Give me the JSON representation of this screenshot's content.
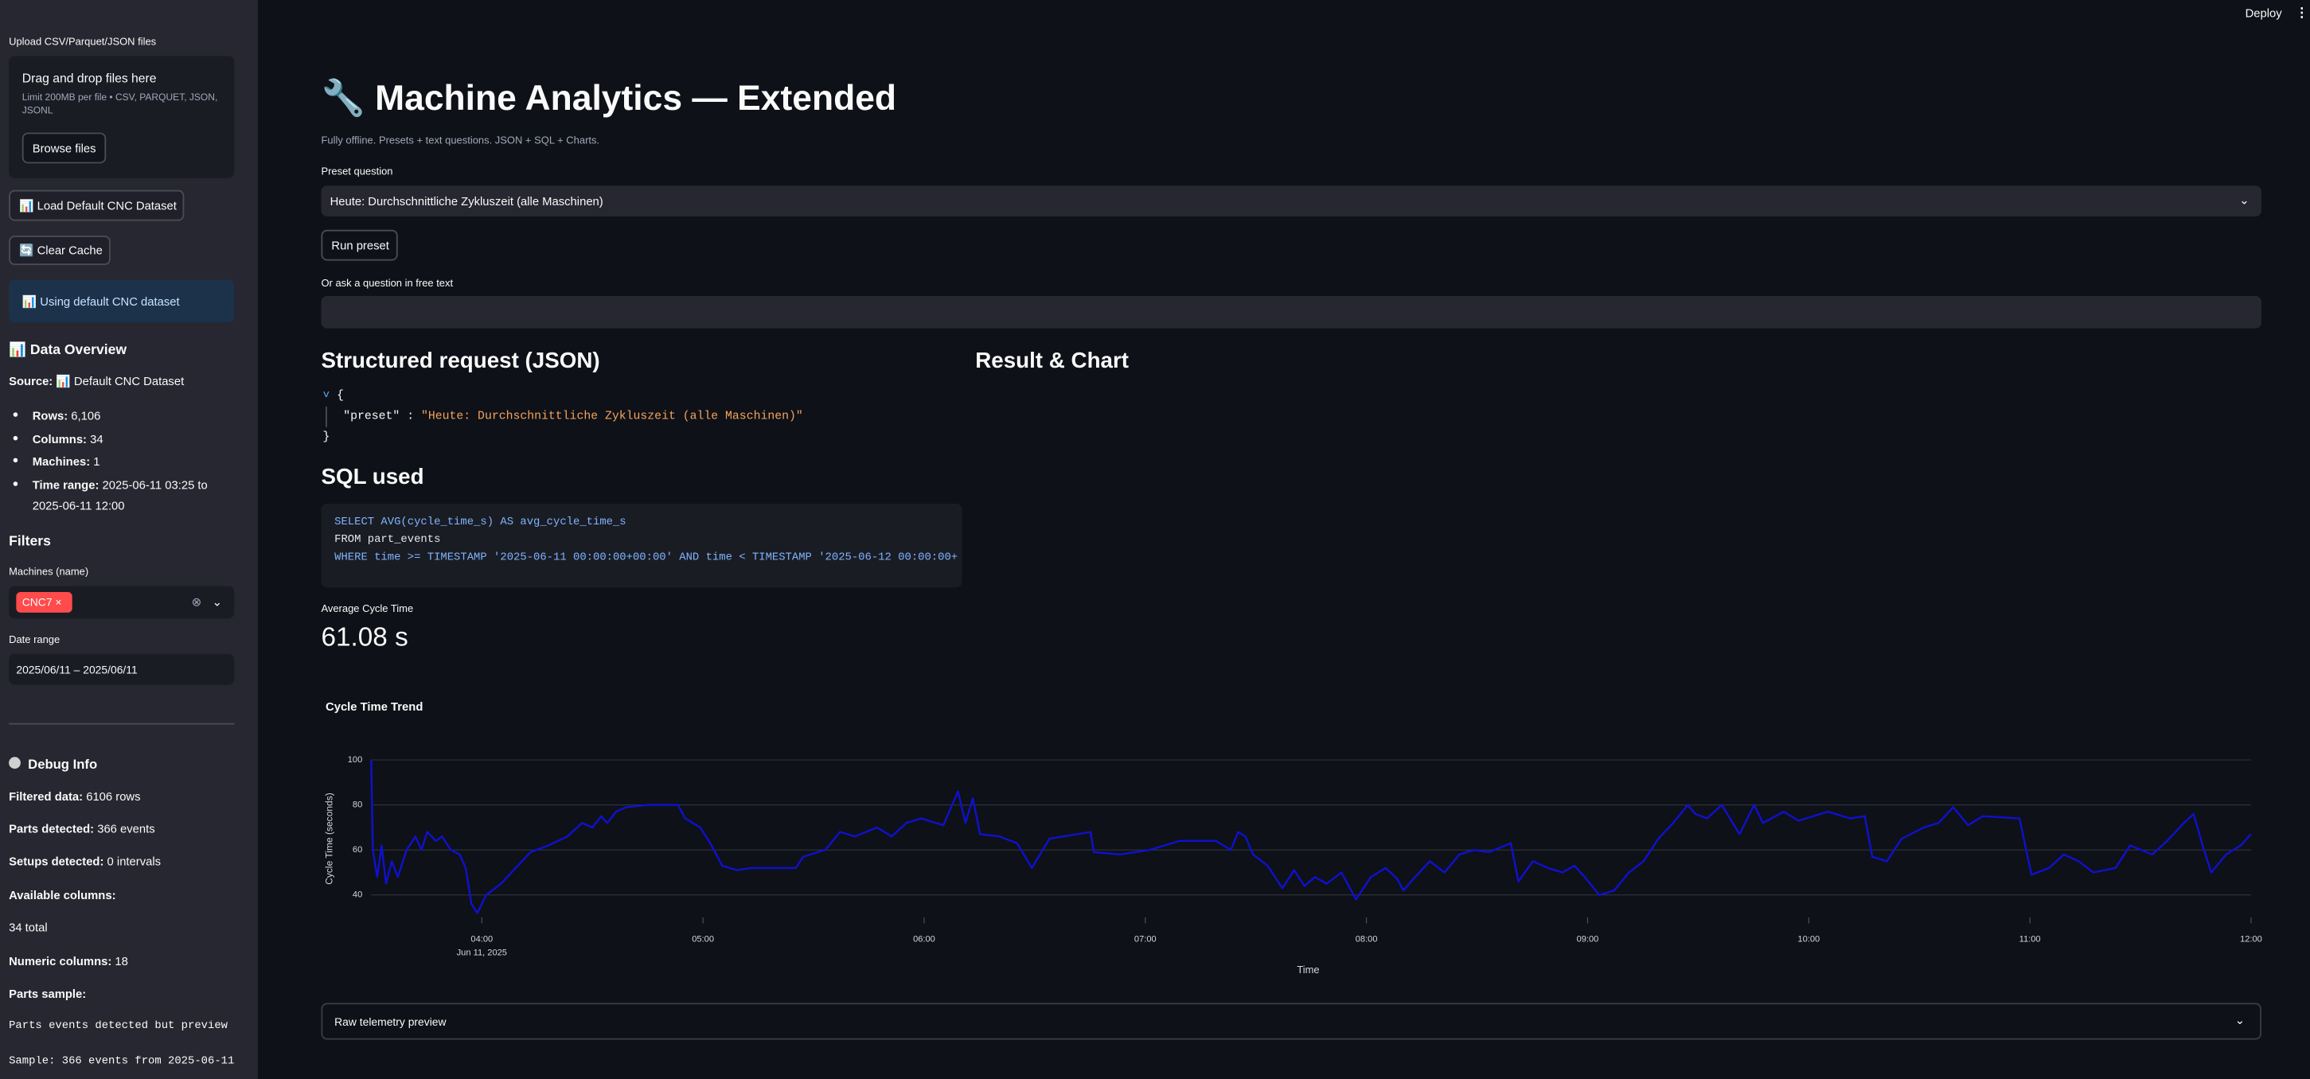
{
  "header": {
    "deploy": "Deploy"
  },
  "sidebar": {
    "upload_label": "Upload CSV/Parquet/JSON files",
    "dropzone_title": "Drag and drop files here",
    "dropzone_hint": "Limit 200MB per file • CSV, PARQUET, JSON, JSONL",
    "browse_button": "Browse files",
    "load_button": "📊 Load Default CNC Dataset",
    "clear_button": "🔄 Clear Cache",
    "status": "📊 Using default CNC dataset",
    "overview_title": "📊 Data Overview",
    "source_label": "Source:",
    "source_value": "📊 Default CNC Dataset",
    "stats": [
      {
        "label": "Rows:",
        "value": "6,106"
      },
      {
        "label": "Columns:",
        "value": "34"
      },
      {
        "label": "Machines:",
        "value": "1"
      },
      {
        "label": "Time range:",
        "value": "2025-06-11 03:25 to 2025-06-11 12:00"
      }
    ],
    "filters_title": "Filters",
    "machines_label": "Machines (name)",
    "machine_tag": "CNC7",
    "date_label": "Date range",
    "date_value": "2025/06/11 – 2025/06/11",
    "debug_title": "Debug Info",
    "debug": [
      {
        "label": "Filtered data:",
        "value": "6106 rows"
      },
      {
        "label": "Parts detected:",
        "value": "366 events"
      },
      {
        "label": "Setups detected:",
        "value": "0 intervals"
      },
      {
        "label": "Available columns:"
      },
      {
        "text": "34 total"
      },
      {
        "label": "Numeric columns:",
        "value": "18"
      },
      {
        "label": "Parts sample:"
      }
    ],
    "debug_code": [
      "Parts events detected but preview",
      "Sample: 366 events from 2025-06-11"
    ]
  },
  "main": {
    "title": "🔧 Machine Analytics — Extended",
    "caption": "Fully offline. Presets + text questions. JSON + SQL + Charts.",
    "preset_label": "Preset question",
    "preset_value": "Heute: Durchschnittliche Zykluszeit (alle Maschinen)",
    "run_button": "Run preset",
    "free_text_label": "Or ask a question in free text",
    "json_heading": "Structured request (JSON)",
    "result_heading": "Result & Chart",
    "json_key": "\"preset\"",
    "json_value": "\"Heute: Durchschnittliche Zykluszeit (alle Maschinen)\"",
    "sql_heading": "SQL used",
    "sql_lines": [
      "SELECT AVG(cycle_time_s) AS avg_cycle_time_s",
      "FROM part_events",
      "WHERE time >= TIMESTAMP '2025-06-11 00:00:00+00:00' AND time < TIMESTAMP '2025-06-12 00:00:00+"
    ],
    "metric_label": "Average Cycle Time",
    "metric_value": "61.08 s",
    "expander": "Raw telemetry preview"
  },
  "chart_data": {
    "type": "line",
    "title": "Cycle Time Trend",
    "x_label": "Time",
    "y_label": "Cycle Time (seconds)",
    "x_date_label": "Jun 11, 2025",
    "x": [
      3.5,
      3.507,
      3.527,
      3.547,
      3.567,
      3.593,
      3.62,
      3.66,
      3.7,
      3.727,
      3.753,
      3.793,
      3.82,
      3.86,
      3.9,
      3.927,
      3.953,
      3.98,
      4.02,
      4.087,
      4.153,
      4.22,
      4.3,
      4.387,
      4.453,
      4.5,
      4.54,
      4.567,
      4.607,
      4.653,
      4.753,
      4.887,
      4.92,
      4.987,
      5.033,
      5.087,
      5.153,
      5.22,
      5.287,
      5.42,
      5.453,
      5.553,
      5.62,
      5.687,
      5.787,
      5.853,
      5.92,
      5.987,
      6.02,
      6.087,
      6.153,
      6.187,
      6.22,
      6.253,
      6.34,
      6.42,
      6.487,
      6.567,
      6.753,
      6.767,
      6.887,
      7.02,
      7.153,
      7.32,
      7.387,
      7.42,
      7.453,
      7.487,
      7.553,
      7.62,
      7.673,
      7.72,
      7.767,
      7.82,
      7.887,
      7.953,
      8.02,
      8.087,
      8.14,
      8.167,
      8.22,
      8.287,
      8.353,
      8.42,
      8.487,
      8.553,
      8.653,
      8.687,
      8.753,
      8.82,
      8.887,
      8.94,
      8.987,
      9.053,
      9.12,
      9.187,
      9.253,
      9.32,
      9.387,
      9.453,
      9.487,
      9.54,
      9.607,
      9.687,
      9.753,
      9.793,
      9.887,
      9.953,
      10.087,
      10.187,
      10.253,
      10.287,
      10.353,
      10.42,
      10.52,
      10.587,
      10.653,
      10.72,
      10.787,
      10.953,
      11.007,
      11.087,
      11.153,
      11.22,
      11.287,
      11.387,
      11.453,
      11.553,
      11.62,
      11.687,
      11.74,
      11.787,
      11.82,
      11.887,
      11.953,
      12.0
    ],
    "values": [
      100,
      60,
      48,
      62,
      45,
      55,
      48,
      60,
      66,
      60,
      68,
      64,
      66,
      60,
      58,
      52,
      36,
      32,
      40,
      45,
      52,
      59,
      62,
      66,
      72,
      70,
      75,
      72,
      77,
      79,
      80,
      80,
      74,
      70,
      63,
      53,
      51,
      52,
      52,
      52,
      57,
      60,
      68,
      66,
      70,
      66,
      72,
      74,
      73,
      71,
      86,
      72,
      83,
      67,
      66,
      63,
      52,
      65,
      68,
      59,
      58,
      60,
      64,
      64,
      60,
      68,
      66,
      58,
      53,
      43,
      51,
      44,
      48,
      45,
      50,
      38,
      48,
      52,
      47,
      42,
      48,
      55,
      50,
      58,
      60,
      59,
      63,
      46,
      55,
      52,
      50,
      53,
      48,
      40,
      42,
      50,
      55,
      65,
      72,
      80,
      76,
      74,
      80,
      67,
      80,
      72,
      77,
      73,
      77,
      74,
      75,
      57,
      55,
      65,
      70,
      72,
      79,
      71,
      75,
      74,
      49,
      52,
      58,
      55,
      50,
      52,
      62,
      58,
      64,
      71,
      76,
      60,
      50,
      58,
      62,
      67
    ],
    "color": "#1010d0",
    "xlim": [
      3.5,
      12
    ],
    "ylim": [
      30,
      100
    ],
    "xticks": [
      {
        "value": 4,
        "label": "04:00"
      },
      {
        "value": 5,
        "label": "05:00"
      },
      {
        "value": 6,
        "label": "06:00"
      },
      {
        "value": 7,
        "label": "07:00"
      },
      {
        "value": 8,
        "label": "08:00"
      },
      {
        "value": 9,
        "label": "09:00"
      },
      {
        "value": 10,
        "label": "10:00"
      },
      {
        "value": 11,
        "label": "11:00"
      },
      {
        "value": 12,
        "label": "12:00"
      }
    ],
    "yticks": [
      40,
      60,
      80,
      100
    ],
    "grid": true
  }
}
